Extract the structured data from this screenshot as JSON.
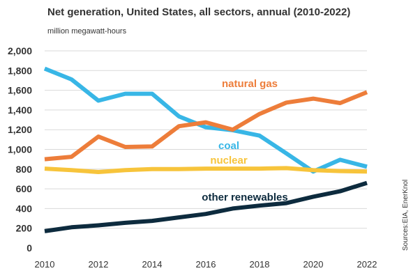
{
  "chart_data": {
    "type": "line",
    "title": "Net generation, United States, all sectors, annual (2010-2022)",
    "ylabel": "million megawatt-hours",
    "source": "Sources:EIA, EnerKnol",
    "x": [
      2010,
      2011,
      2012,
      2013,
      2014,
      2015,
      2016,
      2017,
      2018,
      2019,
      2020,
      2021,
      2022
    ],
    "xticks": [
      2010,
      2012,
      2014,
      2016,
      2018,
      2020,
      2022
    ],
    "xtick_labels": [
      "2010",
      "2012",
      "2014",
      "2016",
      "2018",
      "2020",
      "2022"
    ],
    "yticks": [
      0,
      200,
      400,
      600,
      800,
      1000,
      1200,
      1400,
      1600,
      1800,
      2000
    ],
    "ytick_labels": [
      "0",
      "200",
      "400",
      "600",
      "800",
      "1,000",
      "1,200",
      "1,400",
      "1,600",
      "1,800",
      "2,000"
    ],
    "xlim": [
      2010,
      2022
    ],
    "ylim": [
      0,
      2000
    ],
    "grid": "horizontal",
    "series": [
      {
        "name": "natural gas",
        "color": "#ed7d3a",
        "values": [
          900,
          925,
          1130,
          1025,
          1030,
          1235,
          1275,
          1200,
          1360,
          1475,
          1515,
          1470,
          1580
        ]
      },
      {
        "name": "coal",
        "color": "#38b6e6",
        "values": [
          1820,
          1710,
          1495,
          1565,
          1565,
          1335,
          1225,
          1195,
          1140,
          960,
          775,
          895,
          825
        ]
      },
      {
        "name": "nuclear",
        "color": "#f7c43b",
        "values": [
          805,
          790,
          770,
          790,
          800,
          800,
          805,
          805,
          805,
          810,
          790,
          780,
          775
        ]
      },
      {
        "name": "other renewables",
        "color": "#0d2b3e",
        "values": [
          170,
          210,
          230,
          255,
          275,
          310,
          345,
          400,
          430,
          455,
          520,
          575,
          660
        ]
      }
    ]
  }
}
